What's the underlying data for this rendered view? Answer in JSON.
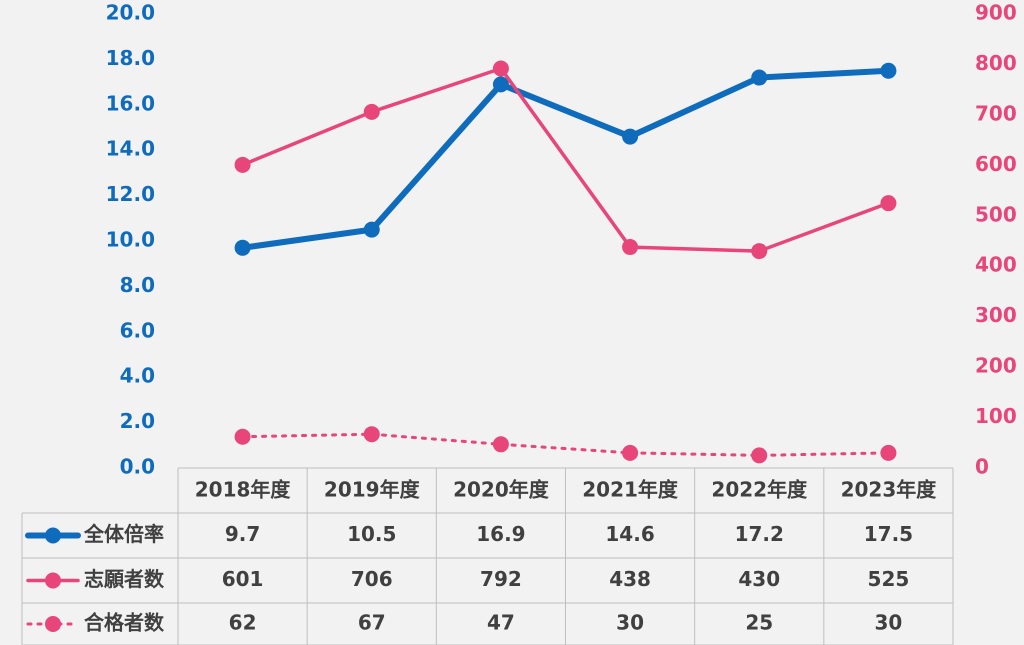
{
  "chart_data": {
    "type": "line",
    "categories": [
      "2018年度",
      "2019年度",
      "2020年度",
      "2021年度",
      "2022年度",
      "2023年度"
    ],
    "series": [
      {
        "name": "全体倍率",
        "color": "#0f6cbd",
        "style": "solid",
        "values": [
          9.7,
          10.5,
          16.9,
          14.6,
          17.2,
          17.5
        ]
      },
      {
        "name": "志願者数",
        "color": "#e8457a",
        "style": "solid",
        "axis": "y2",
        "values": [
          601,
          706,
          792,
          438,
          430,
          525
        ]
      },
      {
        "name": "合格者数",
        "color": "#e8457a",
        "style": "dotted",
        "axis": "y2",
        "values": [
          62,
          67,
          47,
          30,
          25,
          30
        ]
      }
    ],
    "ylim": [
      0,
      20
    ],
    "yticks": [
      {
        "value": 0,
        "label": "0.0"
      },
      {
        "value": 2,
        "label": "2.0"
      },
      {
        "value": 4,
        "label": "4.0"
      },
      {
        "value": 6,
        "label": "6.0"
      },
      {
        "value": 8,
        "label": "8.0"
      },
      {
        "value": 10,
        "label": "10.0"
      },
      {
        "value": 12,
        "label": "12.0"
      },
      {
        "value": 14,
        "label": "14.0"
      },
      {
        "value": 16,
        "label": "16.0"
      },
      {
        "value": 18,
        "label": "18.0"
      },
      {
        "value": 20,
        "label": "20.0"
      }
    ],
    "y2lim": [
      0,
      900
    ],
    "y2ticks": [
      0,
      100,
      200,
      300,
      400,
      500,
      600,
      700,
      800,
      900
    ],
    "ytick_color": "#0f6cbd",
    "y2tick_color": "#e8457a"
  }
}
